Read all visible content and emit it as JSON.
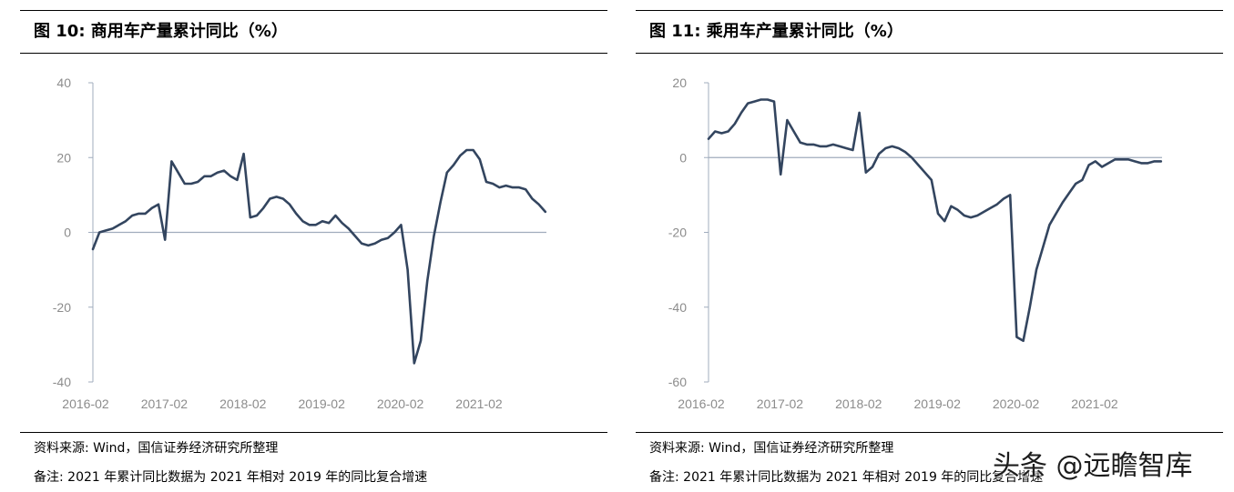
{
  "charts": [
    {
      "title": "图 10:  商用车产量累计同比（%）",
      "source": "资料来源: Wind，国信证券经济研究所整理",
      "note": "备注:  2021 年累计同比数据为 2021 年相对 2019 年的同比复合增速"
    },
    {
      "title": "图 11:  乘用车产量累计同比（%）",
      "source": "资料来源: Wind，国信证券经济研究所整理",
      "note": "备注:  2021 年累计同比数据为 2021 年相对 2019 年的同比复合增速"
    }
  ],
  "watermark": "头条 @远瞻智库",
  "colors": {
    "line": "#33455f",
    "axis": "#a0acbd",
    "tick": "#8c8c8c"
  },
  "chart_data": [
    {
      "type": "line",
      "x_ticks": [
        "2016-02",
        "2017-02",
        "2018-02",
        "2019-02",
        "2020-02",
        "2021-02"
      ],
      "y_ticks": [
        "40",
        "20",
        "0",
        "-20",
        "-40"
      ],
      "ylim": [
        -40,
        40
      ],
      "series": [
        {
          "x": [
            "2016-02",
            "2016-03",
            "2016-04",
            "2016-05",
            "2016-06",
            "2016-07",
            "2016-08",
            "2016-09",
            "2016-10",
            "2016-11",
            "2016-12",
            "2017-01",
            "2017-02",
            "2017-03",
            "2017-04",
            "2017-05",
            "2017-06",
            "2017-07",
            "2017-08",
            "2017-09",
            "2017-10",
            "2017-11",
            "2017-12",
            "2018-01",
            "2018-02",
            "2018-03",
            "2018-04",
            "2018-05",
            "2018-06",
            "2018-07",
            "2018-08",
            "2018-09",
            "2018-10",
            "2018-11",
            "2018-12",
            "2019-01",
            "2019-02",
            "2019-03",
            "2019-04",
            "2019-05",
            "2019-06",
            "2019-07",
            "2019-08",
            "2019-09",
            "2019-10",
            "2019-11",
            "2019-12",
            "2020-01",
            "2020-02",
            "2020-03",
            "2020-04",
            "2020-05",
            "2020-06",
            "2020-07",
            "2020-08",
            "2020-09",
            "2020-10",
            "2020-11",
            "2020-12",
            "2021-01",
            "2021-02",
            "2021-03",
            "2021-04",
            "2021-05",
            "2021-06",
            "2021-07",
            "2021-08",
            "2021-09",
            "2021-10",
            "2021-11"
          ],
          "values": [
            -4.5,
            0,
            0.5,
            1,
            2,
            3,
            4.5,
            5,
            5,
            6.5,
            7.5,
            -2,
            19,
            16,
            13,
            13,
            13.5,
            15,
            15,
            16,
            16.5,
            15,
            14,
            21,
            4,
            4.5,
            6.5,
            9,
            9.5,
            9,
            7.5,
            5,
            3,
            2,
            2,
            3,
            2.5,
            4.5,
            2.5,
            1,
            -1,
            -3,
            -3.5,
            -3,
            -2,
            -1.5,
            0,
            2,
            -10,
            -35,
            -29,
            -13,
            -1,
            8,
            16,
            18,
            20.5,
            22,
            22,
            19.5,
            13.5,
            13,
            12,
            12.5,
            12,
            12,
            11.5,
            9,
            7.5,
            5.5
          ]
        }
      ]
    },
    {
      "type": "line",
      "x_ticks": [
        "2016-02",
        "2017-02",
        "2018-02",
        "2019-02",
        "2020-02",
        "2021-02"
      ],
      "y_ticks": [
        "20",
        "0",
        "-20",
        "-40",
        "-60"
      ],
      "ylim": [
        -60,
        20
      ],
      "series": [
        {
          "x": [
            "2016-02",
            "2016-03",
            "2016-04",
            "2016-05",
            "2016-06",
            "2016-07",
            "2016-08",
            "2016-09",
            "2016-10",
            "2016-11",
            "2016-12",
            "2017-01",
            "2017-02",
            "2017-03",
            "2017-04",
            "2017-05",
            "2017-06",
            "2017-07",
            "2017-08",
            "2017-09",
            "2017-10",
            "2017-11",
            "2017-12",
            "2018-01",
            "2018-02",
            "2018-03",
            "2018-04",
            "2018-05",
            "2018-06",
            "2018-07",
            "2018-08",
            "2018-09",
            "2018-10",
            "2018-11",
            "2018-12",
            "2019-01",
            "2019-02",
            "2019-03",
            "2019-04",
            "2019-05",
            "2019-06",
            "2019-07",
            "2019-08",
            "2019-09",
            "2019-10",
            "2019-11",
            "2019-12",
            "2020-01",
            "2020-02",
            "2020-03",
            "2020-04",
            "2020-05",
            "2020-06",
            "2020-07",
            "2020-08",
            "2020-09",
            "2020-10",
            "2020-11",
            "2020-12",
            "2021-01",
            "2021-02",
            "2021-03",
            "2021-04",
            "2021-05",
            "2021-06",
            "2021-07",
            "2021-08",
            "2021-09",
            "2021-10",
            "2021-11"
          ],
          "values": [
            5,
            7,
            6.5,
            7,
            9,
            12,
            14.5,
            15,
            15.5,
            15.5,
            15,
            -4.5,
            10,
            7,
            4,
            3.5,
            3.5,
            3,
            3,
            3.5,
            3,
            2.5,
            2,
            12,
            -4,
            -2.5,
            1,
            2.5,
            3,
            2.5,
            1.5,
            0,
            -2,
            -4,
            -6,
            -15,
            -17,
            -13,
            -14,
            -15.5,
            -16,
            -15.5,
            -14.5,
            -13.5,
            -12.5,
            -11,
            -10,
            -48,
            -49,
            -40,
            -30,
            -24,
            -18,
            -15,
            -12,
            -9.5,
            -7,
            -6,
            -2,
            -1,
            -2.5,
            -1.5,
            -0.5,
            -0.5,
            -0.5,
            -1,
            -1.5,
            -1.5,
            -1,
            -1
          ]
        }
      ]
    }
  ]
}
